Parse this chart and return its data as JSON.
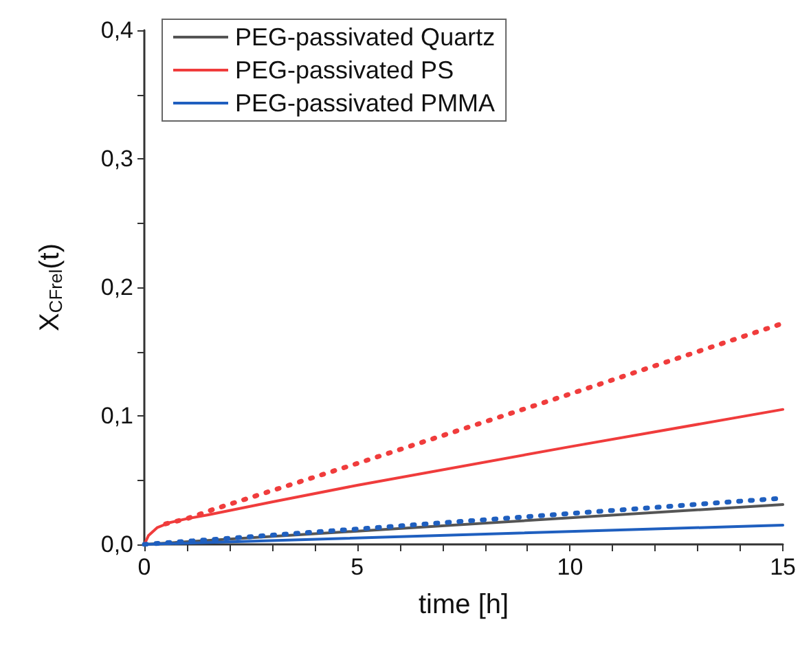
{
  "chart_data": {
    "type": "line",
    "xlabel": "time [h]",
    "ylabel": "X$_{CFrel}$(t)",
    "xlim": [
      0,
      15
    ],
    "ylim": [
      0,
      0.4
    ],
    "xticks": [
      0,
      {
        "value": 1,
        "label": null
      },
      {
        "value": 2,
        "label": null
      },
      {
        "value": 3,
        "label": null
      },
      {
        "value": 4,
        "label": null
      },
      5,
      {
        "value": 6,
        "label": null
      },
      {
        "value": 7,
        "label": null
      },
      {
        "value": 8,
        "label": null
      },
      {
        "value": 9,
        "label": null
      },
      10,
      {
        "value": 11,
        "label": null
      },
      {
        "value": 12,
        "label": null
      },
      {
        "value": 13,
        "label": null
      },
      {
        "value": 14,
        "label": null
      },
      15
    ],
    "yticks": [
      {
        "value": 0,
        "label": "0,0"
      },
      {
        "value": 0.05,
        "label": null
      },
      {
        "value": 0.1,
        "label": "0,1"
      },
      {
        "value": 0.15,
        "label": null
      },
      {
        "value": 0.2,
        "label": "0,2"
      },
      {
        "value": 0.25,
        "label": null
      },
      {
        "value": 0.3,
        "label": "0,3"
      },
      {
        "value": 0.35,
        "label": null
      },
      {
        "value": 0.4,
        "label": "0,4"
      }
    ],
    "grid": false,
    "legend": "top left",
    "marker": "none",
    "series": [
      {
        "name": "PEG-passivated Quartz",
        "color": "#555555",
        "line_style": "solid",
        "x": [
          0,
          15
        ],
        "values": [
          0,
          0.031
        ]
      },
      {
        "name": "PEG-passivated PS",
        "color": "#f03c3c",
        "line_style": "solid",
        "x": [
          0,
          0.1,
          0.3,
          0.6,
          1,
          1.5,
          3,
          5,
          10,
          15
        ],
        "values": [
          0,
          0.007,
          0.013,
          0.017,
          0.02,
          0.023,
          0.033,
          0.046,
          0.076,
          0.105
        ]
      },
      {
        "name": "PEG-passivated PMMA",
        "color": "#1f5fbf",
        "line_style": "solid",
        "x": [
          0,
          15
        ],
        "values": [
          0,
          0.015
        ]
      },
      {
        "color": "#f03c3c",
        "line_style": "dotted",
        "x": [
          0.5,
          1,
          1.6,
          5,
          10,
          15
        ],
        "values": [
          0.016,
          0.02,
          0.027,
          0.063,
          0.117,
          0.172
        ]
      },
      {
        "color": "#1f5fbf",
        "line_style": "dotted",
        "x": [
          0,
          15
        ],
        "values": [
          0,
          0.036
        ]
      }
    ]
  }
}
